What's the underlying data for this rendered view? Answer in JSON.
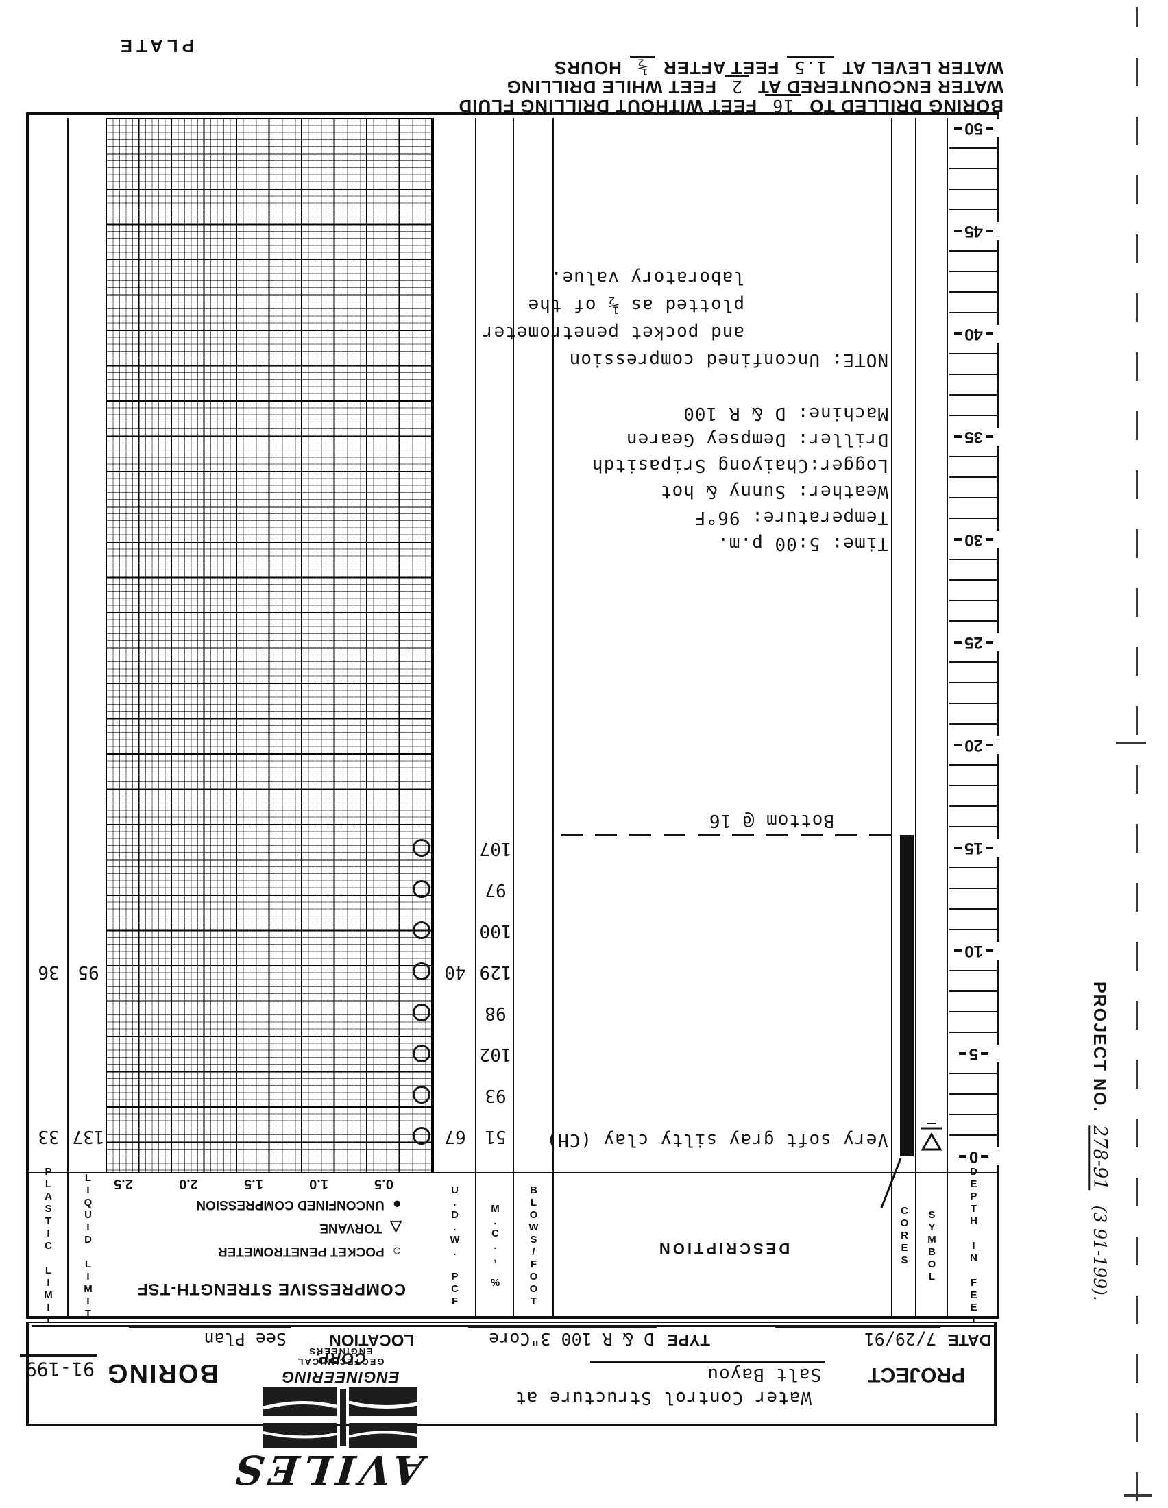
{
  "margin": {
    "plate": "PLATE",
    "project_no_label": "PROJECT NO.",
    "project_no_value": "278-91",
    "project_no_extra": "(3 91-199)."
  },
  "title_block": {
    "project_line": "Water Control Structure at",
    "project_label": "PROJECT",
    "project_value": "Salt Bayou",
    "date_label": "DATE",
    "date_value": "7/29/91",
    "type_label": "TYPE",
    "type_value": "D & R 100 3\"Core",
    "location_label": "LOCATION",
    "location_value": "See Plan",
    "boring_label": "BORING",
    "boring_value": "91-199",
    "logo_name": "AVILES",
    "logo_sub1": "ENGINEERING CORP.",
    "logo_sub2": "GEOTECHNICAL ENGINEERS"
  },
  "header": {
    "depth": "DEPTH IN FEET",
    "symbol": "SYMBOL",
    "cores": "CORES",
    "description": "DESCRIPTION",
    "blows": "BLOWS/FOOT",
    "mc": "M.C., %",
    "udw": "U.D.W. PCF",
    "liquid": "LIQUID LIMIT",
    "plastic": "PLASTIC LIMIT",
    "strength_title": "COMPRESSIVE STRENGTH-TSF",
    "legend": [
      {
        "symbol": "○",
        "name": "pocket-penetrometer-symbol",
        "label": "POCKET PENETROMETER"
      },
      {
        "symbol": "△",
        "name": "torvane-symbol",
        "label": "TORVANE"
      },
      {
        "symbol": "●",
        "name": "unconfined-compression-symbol",
        "label": "UNCONFINED COMPRESSION"
      }
    ],
    "scale": [
      "0.5",
      "1.0",
      "1.5",
      "2.0",
      "2.5"
    ]
  },
  "depth_scale": {
    "unit": "feet",
    "labels": [
      0,
      5,
      10,
      15,
      20,
      25,
      30,
      35,
      40,
      45,
      50
    ]
  },
  "log": {
    "description": "Very soft gray silty clay (CH)",
    "bottom_note": "Bottom @ 16",
    "bottom_depth_ft": 16,
    "water_level_depth_ft": 1.5,
    "samples": [
      {
        "depth_ft": 1,
        "mc": "51",
        "udw": "67",
        "ll": "137",
        "pl": "33"
      },
      {
        "depth_ft": 3,
        "mc": "93"
      },
      {
        "depth_ft": 5,
        "mc": "102"
      },
      {
        "depth_ft": 7,
        "mc": "98"
      },
      {
        "depth_ft": 9,
        "mc": "129",
        "udw": "40",
        "ll": "95",
        "pl": "36"
      },
      {
        "depth_ft": 11,
        "mc": "100"
      },
      {
        "depth_ft": 13,
        "mc": "97"
      },
      {
        "depth_ft": 15,
        "mc": "107"
      }
    ],
    "field_notes": [
      "Time: 5:00 p.m.",
      "Temperature: 96°F",
      "Weather: Sunny & hot",
      "Logger:Chaiyong Sripasitdh",
      "Driller: Dempsey Gearen",
      "Machine: D & R 100"
    ],
    "note_lines": [
      "NOTE:  Unconfined compression",
      "and pocket penetrometer",
      "plotted as ½ of the",
      "laboratory value."
    ]
  },
  "footer_notes": [
    [
      {
        "t": "BORING DRILLED TO"
      },
      {
        "t": "16",
        "u": 1
      },
      {
        "t": "FEET WITHOUT DRILLING FLUID"
      }
    ],
    [
      {
        "t": "WATER ENCOUNTERED AT"
      },
      {
        "t": "2",
        "u": 1
      },
      {
        "t": "FEET WHILE DRILLING"
      }
    ],
    [
      {
        "t": "WATER LEVEL AT"
      },
      {
        "t": "1.5",
        "u": 1
      },
      {
        "t": "FEET AFTER"
      },
      {
        "t": "½",
        "u": 1
      },
      {
        "t": "HOURS"
      }
    ]
  ]
}
